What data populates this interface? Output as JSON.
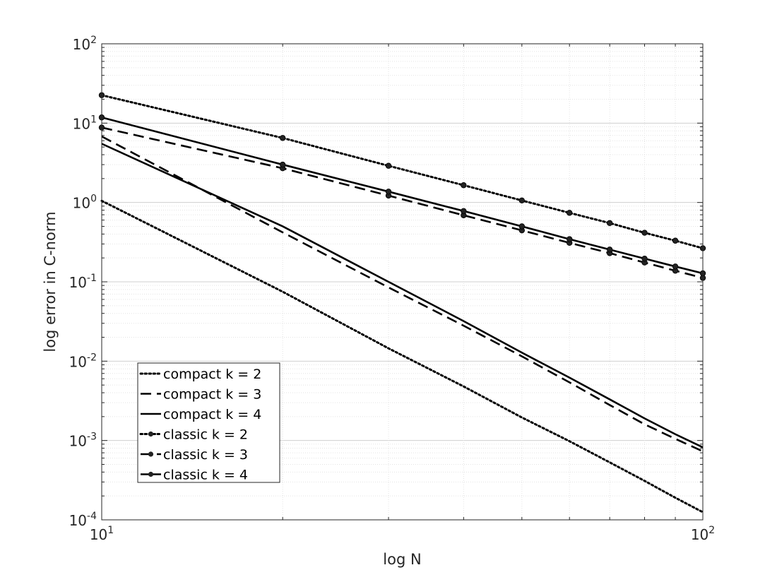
{
  "chart_data": {
    "type": "line",
    "title": "",
    "xlabel": "log N",
    "ylabel": "log error in C-norm",
    "xscale": "log",
    "yscale": "log",
    "xlim": [
      10,
      100
    ],
    "ylim": [
      0.0001,
      100
    ],
    "grid": true,
    "minor_grid": true,
    "x_ticks": [
      {
        "base": "10",
        "exp": "1",
        "value": 10
      },
      {
        "base": "10",
        "exp": "2",
        "value": 100
      }
    ],
    "y_ticks": [
      {
        "base": "10",
        "exp": "-4",
        "value": 0.0001
      },
      {
        "base": "10",
        "exp": "-3",
        "value": 0.001
      },
      {
        "base": "10",
        "exp": "-2",
        "value": 0.01
      },
      {
        "base": "10",
        "exp": "-1",
        "value": 0.1
      },
      {
        "base": "10",
        "exp": "0",
        "value": 1
      },
      {
        "base": "10",
        "exp": "1",
        "value": 10
      },
      {
        "base": "10",
        "exp": "2",
        "value": 100
      }
    ],
    "legend_position": "bottom-left",
    "series": [
      {
        "name": "compact k = 2",
        "style": "dotted",
        "marker": "none",
        "x": [
          10,
          20,
          30,
          40,
          50,
          60,
          70,
          80,
          90,
          100
        ],
        "y": [
          1.05,
          0.075,
          0.0145,
          0.0048,
          0.00195,
          0.00098,
          0.00053,
          0.00031,
          0.00019,
          0.000125
        ]
      },
      {
        "name": "compact k = 3",
        "style": "dashed",
        "marker": "none",
        "x": [
          10,
          20,
          30,
          40,
          50,
          60,
          70,
          80,
          90,
          100
        ],
        "y": [
          6.8,
          0.42,
          0.085,
          0.028,
          0.0115,
          0.0054,
          0.0028,
          0.0016,
          0.00105,
          0.00073
        ]
      },
      {
        "name": "compact k = 4",
        "style": "solid",
        "marker": "none",
        "x": [
          10,
          20,
          30,
          40,
          50,
          60,
          70,
          80,
          90,
          100
        ],
        "y": [
          5.5,
          0.5,
          0.1,
          0.032,
          0.0128,
          0.0062,
          0.0033,
          0.0019,
          0.0012,
          0.00082
        ]
      },
      {
        "name": "classic k = 2",
        "style": "dotted",
        "marker": "dot",
        "x": [
          10,
          20,
          30,
          40,
          50,
          60,
          70,
          80,
          90,
          100
        ],
        "y": [
          22.5,
          6.5,
          2.9,
          1.65,
          1.06,
          0.74,
          0.55,
          0.415,
          0.33,
          0.265
        ]
      },
      {
        "name": "classic k = 3",
        "style": "dashed",
        "marker": "dot",
        "x": [
          10,
          20,
          30,
          40,
          50,
          60,
          70,
          80,
          90,
          100
        ],
        "y": [
          8.8,
          2.7,
          1.22,
          0.69,
          0.445,
          0.31,
          0.23,
          0.175,
          0.138,
          0.112
        ]
      },
      {
        "name": "classic k = 4",
        "style": "solid",
        "marker": "dot",
        "x": [
          10,
          20,
          30,
          40,
          50,
          60,
          70,
          80,
          90,
          100
        ],
        "y": [
          11.8,
          3.0,
          1.37,
          0.78,
          0.5,
          0.345,
          0.255,
          0.196,
          0.156,
          0.128
        ]
      }
    ]
  }
}
